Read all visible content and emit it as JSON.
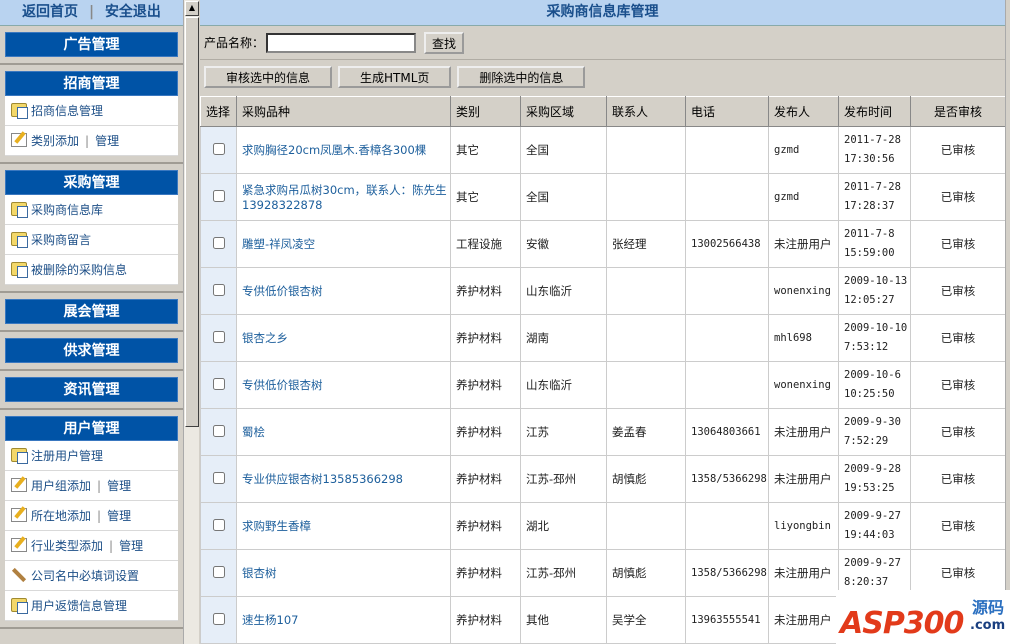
{
  "left": {
    "top_links": [
      "返回首页",
      "安全退出"
    ],
    "sections": [
      {
        "title": "广告管理",
        "items": []
      },
      {
        "title": "招商管理",
        "items": [
          {
            "icon": "folder",
            "label": "招商信息管理"
          },
          {
            "icon": "edit",
            "label": "类别添加",
            "extra": "管理"
          }
        ]
      },
      {
        "title": "采购管理",
        "items": [
          {
            "icon": "folder",
            "label": "采购商信息库"
          },
          {
            "icon": "folder",
            "label": "采购商留言"
          },
          {
            "icon": "folder",
            "label": "被删除的采购信息"
          }
        ]
      },
      {
        "title": "展会管理",
        "items": []
      },
      {
        "title": "供求管理",
        "items": []
      },
      {
        "title": "资讯管理",
        "items": []
      },
      {
        "title": "用户管理",
        "items": [
          {
            "icon": "folder",
            "label": "注册用户管理"
          },
          {
            "icon": "edit",
            "label": "用户组添加",
            "extra": "管理"
          },
          {
            "icon": "edit",
            "label": "所在地添加",
            "extra": "管理"
          },
          {
            "icon": "edit",
            "label": "行业类型添加",
            "extra": "管理"
          },
          {
            "icon": "wrench",
            "label": "公司名中必填词设置"
          },
          {
            "icon": "folder",
            "label": "用户返馈信息管理"
          }
        ]
      }
    ]
  },
  "main": {
    "title": "采购商信息库管理",
    "search_label": "产品名称：",
    "search_value": "",
    "search_button": "查找",
    "actions": [
      "审核选中的信息",
      "生成HTML页",
      "删除选中的信息"
    ],
    "columns": [
      "选择",
      "采购品种",
      "类别",
      "采购区域",
      "联系人",
      "电话",
      "发布人",
      "发布时间",
      "是否审核"
    ],
    "rows": [
      [
        "求购胸径20cm凤凰木.香樟各300棵",
        "其它",
        "全国",
        "",
        "",
        "gzmd",
        "2011-7-28 17:30:56",
        "已审核"
      ],
      [
        "紧急求购吊瓜树30cm，联系人：陈先生13928322878",
        "其它",
        "全国",
        "",
        "",
        "gzmd",
        "2011-7-28 17:28:37",
        "已审核"
      ],
      [
        "雕塑-祥凤凌空",
        "工程设施",
        "安徽",
        "张经理",
        "13002566438",
        "未注册用户",
        "2011-7-8 15:59:00",
        "已审核"
      ],
      [
        "专供低价银杏树",
        "养护材料",
        "山东临沂",
        "",
        "",
        "wonenxing",
        "2009-10-13 12:05:27",
        "已审核"
      ],
      [
        "银杏之乡",
        "养护材料",
        "湖南",
        "",
        "",
        "mhl698",
        "2009-10-10 7:53:12",
        "已审核"
      ],
      [
        "专供低价银杏树",
        "养护材料",
        "山东临沂",
        "",
        "",
        "wonenxing",
        "2009-10-6 10:25:50",
        "已审核"
      ],
      [
        "蜀桧",
        "养护材料",
        "江苏",
        "姜孟春",
        "13064803661",
        "未注册用户",
        "2009-9-30 7:52:29",
        "已审核"
      ],
      [
        "专业供应银杏树13585366298",
        "养护材料",
        "江苏-邳州",
        "胡慎彪",
        "1358/5366298",
        "未注册用户",
        "2009-9-28 19:53:25",
        "已审核"
      ],
      [
        "求购野生香樟",
        "养护材料",
        "湖北",
        "",
        "",
        "liyongbin",
        "2009-9-27 19:44:03",
        "已审核"
      ],
      [
        "银杏树",
        "养护材料",
        "江苏-邳州",
        "胡慎彪",
        "1358/5366298",
        "未注册用户",
        "2009-9-27 8:20:37",
        "已审核"
      ],
      [
        "速生杨107",
        "养护材料",
        "其他",
        "吴学全",
        "13963555541",
        "未注册用户",
        "",
        ""
      ]
    ]
  },
  "watermark": {
    "text": "ASP300",
    "cn": "源码",
    "domain": ".com"
  },
  "colors": {
    "header_blue": "#0053a6",
    "title_bar": "#b9d3f0",
    "link": "#1d5f9c",
    "panel": "#d4d0c8"
  }
}
